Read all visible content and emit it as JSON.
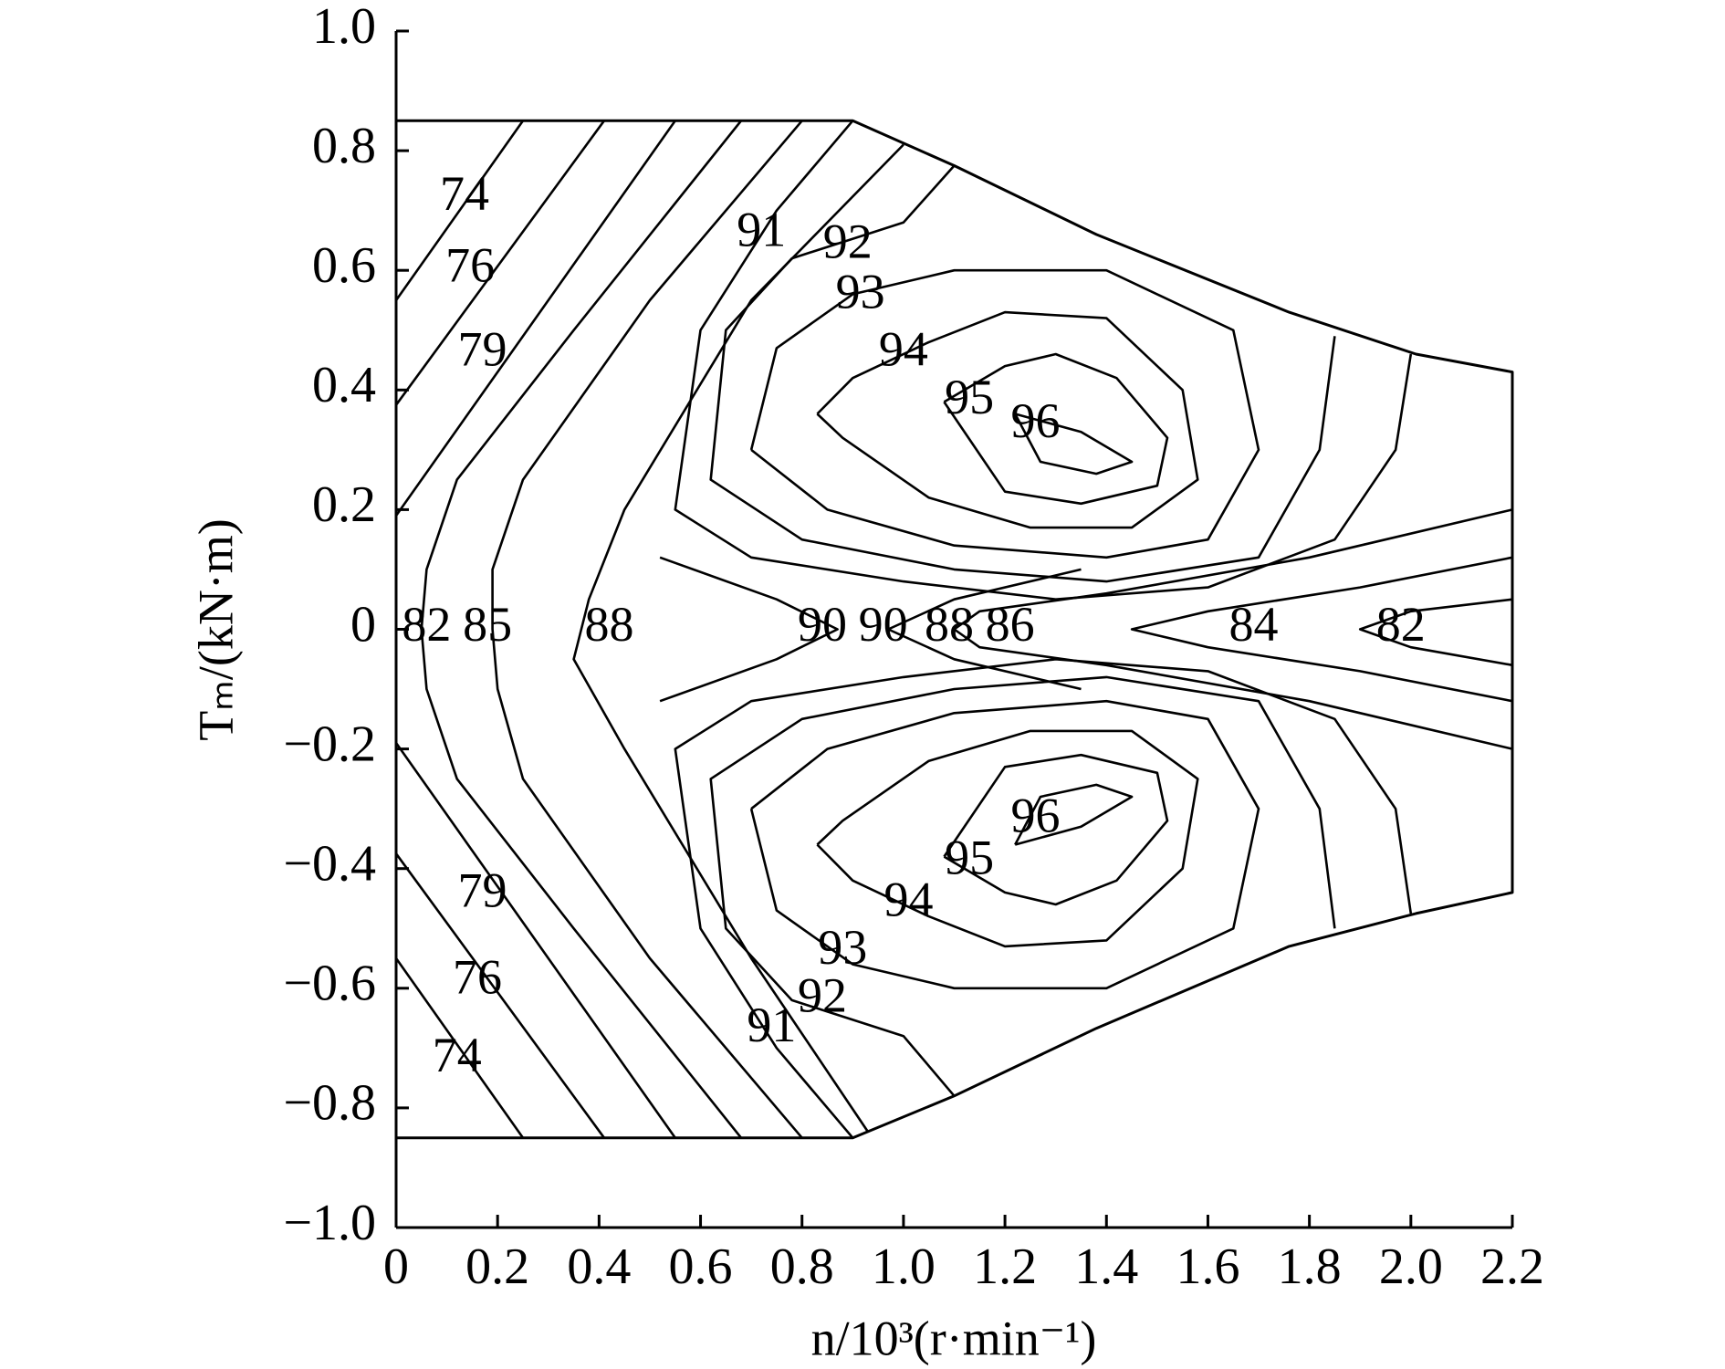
{
  "chart_data": {
    "type": "contour",
    "x_label": "n/10³(r·min⁻¹)",
    "y_label": "Tₘ/(kN·m)",
    "xlim": [
      0,
      2.2
    ],
    "ylim": [
      -1.0,
      1.0
    ],
    "xticks": [
      0,
      0.2,
      0.4,
      0.6,
      0.8,
      {
        "value": 1.0,
        "label": "1.0"
      },
      1.2,
      1.4,
      1.6,
      1.8,
      {
        "value": 2.0,
        "label": "2.0"
      },
      2.2
    ],
    "yticks": [
      {
        "value": -1.0,
        "label": "−1.0"
      },
      {
        "value": -0.8,
        "label": "−0.8"
      },
      {
        "value": -0.6,
        "label": "−0.6"
      },
      {
        "value": -0.4,
        "label": "−0.4"
      },
      {
        "value": -0.2,
        "label": "−0.2"
      },
      0,
      0.2,
      0.4,
      0.6,
      0.8,
      {
        "value": 1.0,
        "label": "1.0"
      }
    ],
    "color": "#000000",
    "boundary": {
      "x": [
        0,
        0.9,
        1.1,
        1.38,
        1.76,
        2.01,
        2.2,
        2.2,
        2.01,
        1.76,
        1.38,
        1.1,
        0.9,
        0
      ],
      "y": [
        0.85,
        0.85,
        0.775,
        0.66,
        0.53,
        0.46,
        0.43,
        -0.44,
        -0.475,
        -0.53,
        -0.667,
        -0.78,
        -0.85,
        -0.85
      ]
    },
    "contours": [
      {
        "x": [
          0,
          0.25,
          null,
          0,
          0.25
        ],
        "y": [
          0.55,
          0.85,
          null,
          -0.55,
          -0.85
        ]
      },
      {
        "x": [
          0,
          0.41,
          null,
          0,
          0.41
        ],
        "y": [
          0.375,
          0.85,
          null,
          -0.375,
          -0.85
        ]
      },
      {
        "x": [
          0,
          0.55,
          null,
          0,
          0.55
        ],
        "y": [
          0.19,
          0.85,
          null,
          -0.19,
          -0.85
        ]
      },
      {
        "x": [
          0.68,
          0.35,
          0.12,
          0.06,
          0.05,
          0.06,
          0.12,
          0.35,
          0.68
        ],
        "y": [
          0.85,
          0.5,
          0.25,
          0.1,
          0,
          -0.1,
          -0.25,
          -0.5,
          -0.85
        ]
      },
      {
        "x": [
          0.8,
          0.5,
          0.25,
          0.19,
          0.19,
          0.2,
          0.25,
          0.5,
          0.8
        ],
        "y": [
          0.85,
          0.55,
          0.25,
          0.1,
          0,
          -0.1,
          -0.25,
          -0.55,
          -0.85
        ]
      },
      {
        "x": [
          1.0,
          0.7,
          0.45,
          0.38,
          0.35,
          0.45,
          0.7,
          0.93
        ],
        "y": [
          0.81,
          0.55,
          0.2,
          0.05,
          -0.05,
          -0.2,
          -0.55,
          -0.84
        ]
      },
      {
        "x": [
          0.52,
          0.75,
          0.87,
          0.75,
          0.52,
          null,
          1.35,
          1.1,
          0.97,
          1.1,
          1.35
        ],
        "y": [
          0.12,
          0.05,
          0,
          -0.05,
          -0.12,
          null,
          0.1,
          0.05,
          0,
          -0.05,
          -0.1
        ]
      },
      {
        "x": [
          1.22,
          1.35,
          1.45,
          1.38,
          1.27,
          1.22,
          null,
          1.22,
          1.35,
          1.45,
          1.38,
          1.27,
          1.22
        ],
        "y": [
          0.36,
          0.33,
          0.28,
          0.26,
          0.28,
          0.36,
          null,
          -0.36,
          -0.33,
          -0.28,
          -0.26,
          -0.28,
          -0.36
        ]
      },
      {
        "x": [
          1.08,
          1.2,
          1.3,
          1.42,
          1.52,
          1.5,
          1.35,
          1.2,
          1.08,
          null,
          1.08,
          1.2,
          1.3,
          1.42,
          1.52,
          1.5,
          1.35,
          1.2,
          1.08
        ],
        "y": [
          0.38,
          0.44,
          0.46,
          0.42,
          0.32,
          0.24,
          0.21,
          0.23,
          0.38,
          null,
          -0.38,
          -0.44,
          -0.46,
          -0.42,
          -0.32,
          -0.24,
          -0.21,
          -0.23,
          -0.38
        ]
      },
      {
        "x": [
          0.83,
          0.9,
          1.05,
          1.2,
          1.4,
          1.55,
          1.58,
          1.45,
          1.25,
          1.05,
          0.88,
          0.83,
          null,
          0.83,
          0.9,
          1.05,
          1.2,
          1.4,
          1.55,
          1.58,
          1.45,
          1.25,
          1.05,
          0.88,
          0.83
        ],
        "y": [
          0.36,
          0.42,
          0.48,
          0.53,
          0.52,
          0.4,
          0.25,
          0.17,
          0.17,
          0.22,
          0.32,
          0.36,
          null,
          -0.36,
          -0.42,
          -0.48,
          -0.53,
          -0.52,
          -0.4,
          -0.25,
          -0.17,
          -0.17,
          -0.22,
          -0.32,
          -0.36
        ]
      },
      {
        "x": [
          0.7,
          0.75,
          0.9,
          1.1,
          1.4,
          1.65,
          1.7,
          1.6,
          1.4,
          1.1,
          0.85,
          0.7,
          null,
          0.7,
          0.75,
          0.9,
          1.1,
          1.4,
          1.65,
          1.7,
          1.6,
          1.4,
          1.1,
          0.85,
          0.7
        ],
        "y": [
          0.3,
          0.47,
          0.56,
          0.6,
          0.6,
          0.5,
          0.3,
          0.15,
          0.12,
          0.14,
          0.2,
          0.3,
          null,
          -0.3,
          -0.47,
          -0.56,
          -0.6,
          -0.6,
          -0.5,
          -0.3,
          -0.15,
          -0.12,
          -0.14,
          -0.2,
          -0.3
        ]
      },
      {
        "x": [
          1.1,
          1.0,
          0.78,
          0.65,
          0.62,
          0.8,
          1.1,
          1.4,
          1.7,
          1.82,
          1.85,
          null,
          1.1,
          1.0,
          0.78,
          0.65,
          0.62,
          0.8,
          1.1,
          1.4,
          1.7,
          1.82,
          1.85
        ],
        "y": [
          0.775,
          0.68,
          0.62,
          0.5,
          0.25,
          0.15,
          0.1,
          0.08,
          0.12,
          0.3,
          0.49,
          null,
          -0.78,
          -0.68,
          -0.62,
          -0.5,
          -0.25,
          -0.15,
          -0.1,
          -0.08,
          -0.12,
          -0.3,
          -0.5
        ]
      },
      {
        "x": [
          0.9,
          0.75,
          0.6,
          0.55,
          0.7,
          1.0,
          1.3,
          1.6,
          1.85,
          1.97,
          2.0,
          null,
          0.9,
          0.75,
          0.6,
          0.55,
          0.7,
          1.0,
          1.3,
          1.6,
          1.85,
          1.97,
          2.0
        ],
        "y": [
          0.85,
          0.7,
          0.5,
          0.2,
          0.12,
          0.08,
          0.05,
          0.07,
          0.15,
          0.3,
          0.46,
          null,
          -0.85,
          -0.7,
          -0.5,
          -0.2,
          -0.12,
          -0.08,
          -0.05,
          -0.07,
          -0.15,
          -0.3,
          -0.475
        ]
      },
      {
        "x": [
          2.2,
          1.8,
          1.4,
          1.15,
          1.1,
          1.15,
          1.4,
          1.8,
          2.2
        ],
        "y": [
          0.2,
          0.12,
          0.06,
          0.03,
          0,
          -0.03,
          -0.06,
          -0.12,
          -0.2
        ]
      },
      {
        "x": [
          2.2,
          1.9,
          1.6,
          1.45,
          1.6,
          1.9,
          2.2
        ],
        "y": [
          0.12,
          0.07,
          0.03,
          0,
          -0.03,
          -0.07,
          -0.12
        ]
      },
      {
        "x": [
          2.2,
          2.0,
          1.9,
          2.0,
          2.2
        ],
        "y": [
          0.05,
          0.03,
          0,
          -0.03,
          -0.06
        ]
      }
    ],
    "contour_labels": [
      {
        "level": 74,
        "x": 0.135,
        "y": 0.72
      },
      {
        "level": 76,
        "x": 0.146,
        "y": 0.6
      },
      {
        "level": 79,
        "x": 0.17,
        "y": 0.46
      },
      {
        "level": 91,
        "x": 0.72,
        "y": 0.66
      },
      {
        "level": 92,
        "x": 0.89,
        "y": 0.64
      },
      {
        "level": 93,
        "x": 0.915,
        "y": 0.556
      },
      {
        "level": 94,
        "x": 1.0,
        "y": 0.46
      },
      {
        "level": 95,
        "x": 1.13,
        "y": 0.38
      },
      {
        "level": 96,
        "x": 1.26,
        "y": 0.34
      },
      {
        "level": 82,
        "x": 0.06,
        "y": 0
      },
      {
        "level": 85,
        "x": 0.18,
        "y": 0
      },
      {
        "level": 88,
        "x": 0.42,
        "y": 0
      },
      {
        "level": 90,
        "x": 0.84,
        "y": 0
      },
      {
        "level": 90,
        "x": 0.96,
        "y": 0
      },
      {
        "level": 88,
        "x": 1.09,
        "y": 0
      },
      {
        "level": 86,
        "x": 1.21,
        "y": 0
      },
      {
        "level": 84,
        "x": 1.69,
        "y": 0
      },
      {
        "level": 82,
        "x": 1.98,
        "y": 0
      },
      {
        "level": 96,
        "x": 1.26,
        "y": -0.32
      },
      {
        "level": 95,
        "x": 1.13,
        "y": -0.39
      },
      {
        "level": 94,
        "x": 1.01,
        "y": -0.46
      },
      {
        "level": 93,
        "x": 0.88,
        "y": -0.54
      },
      {
        "level": 92,
        "x": 0.84,
        "y": -0.62
      },
      {
        "level": 91,
        "x": 0.74,
        "y": -0.67
      },
      {
        "level": 79,
        "x": 0.17,
        "y": -0.445
      },
      {
        "level": 76,
        "x": 0.16,
        "y": -0.59
      },
      {
        "level": 74,
        "x": 0.12,
        "y": -0.72
      }
    ]
  }
}
